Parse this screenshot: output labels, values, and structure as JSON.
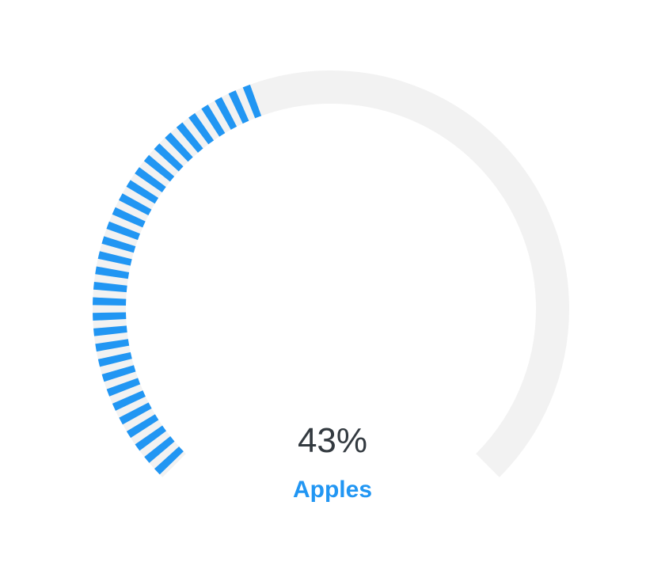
{
  "chart_data": {
    "type": "radial-gauge",
    "value": 43,
    "value_label": "43%",
    "label": "Apples",
    "min": 0,
    "max": 100,
    "colors": {
      "fill": "#2196f3",
      "track": "#f2f2f2",
      "value_text": "#333a40",
      "label_text": "#2196f3"
    }
  }
}
